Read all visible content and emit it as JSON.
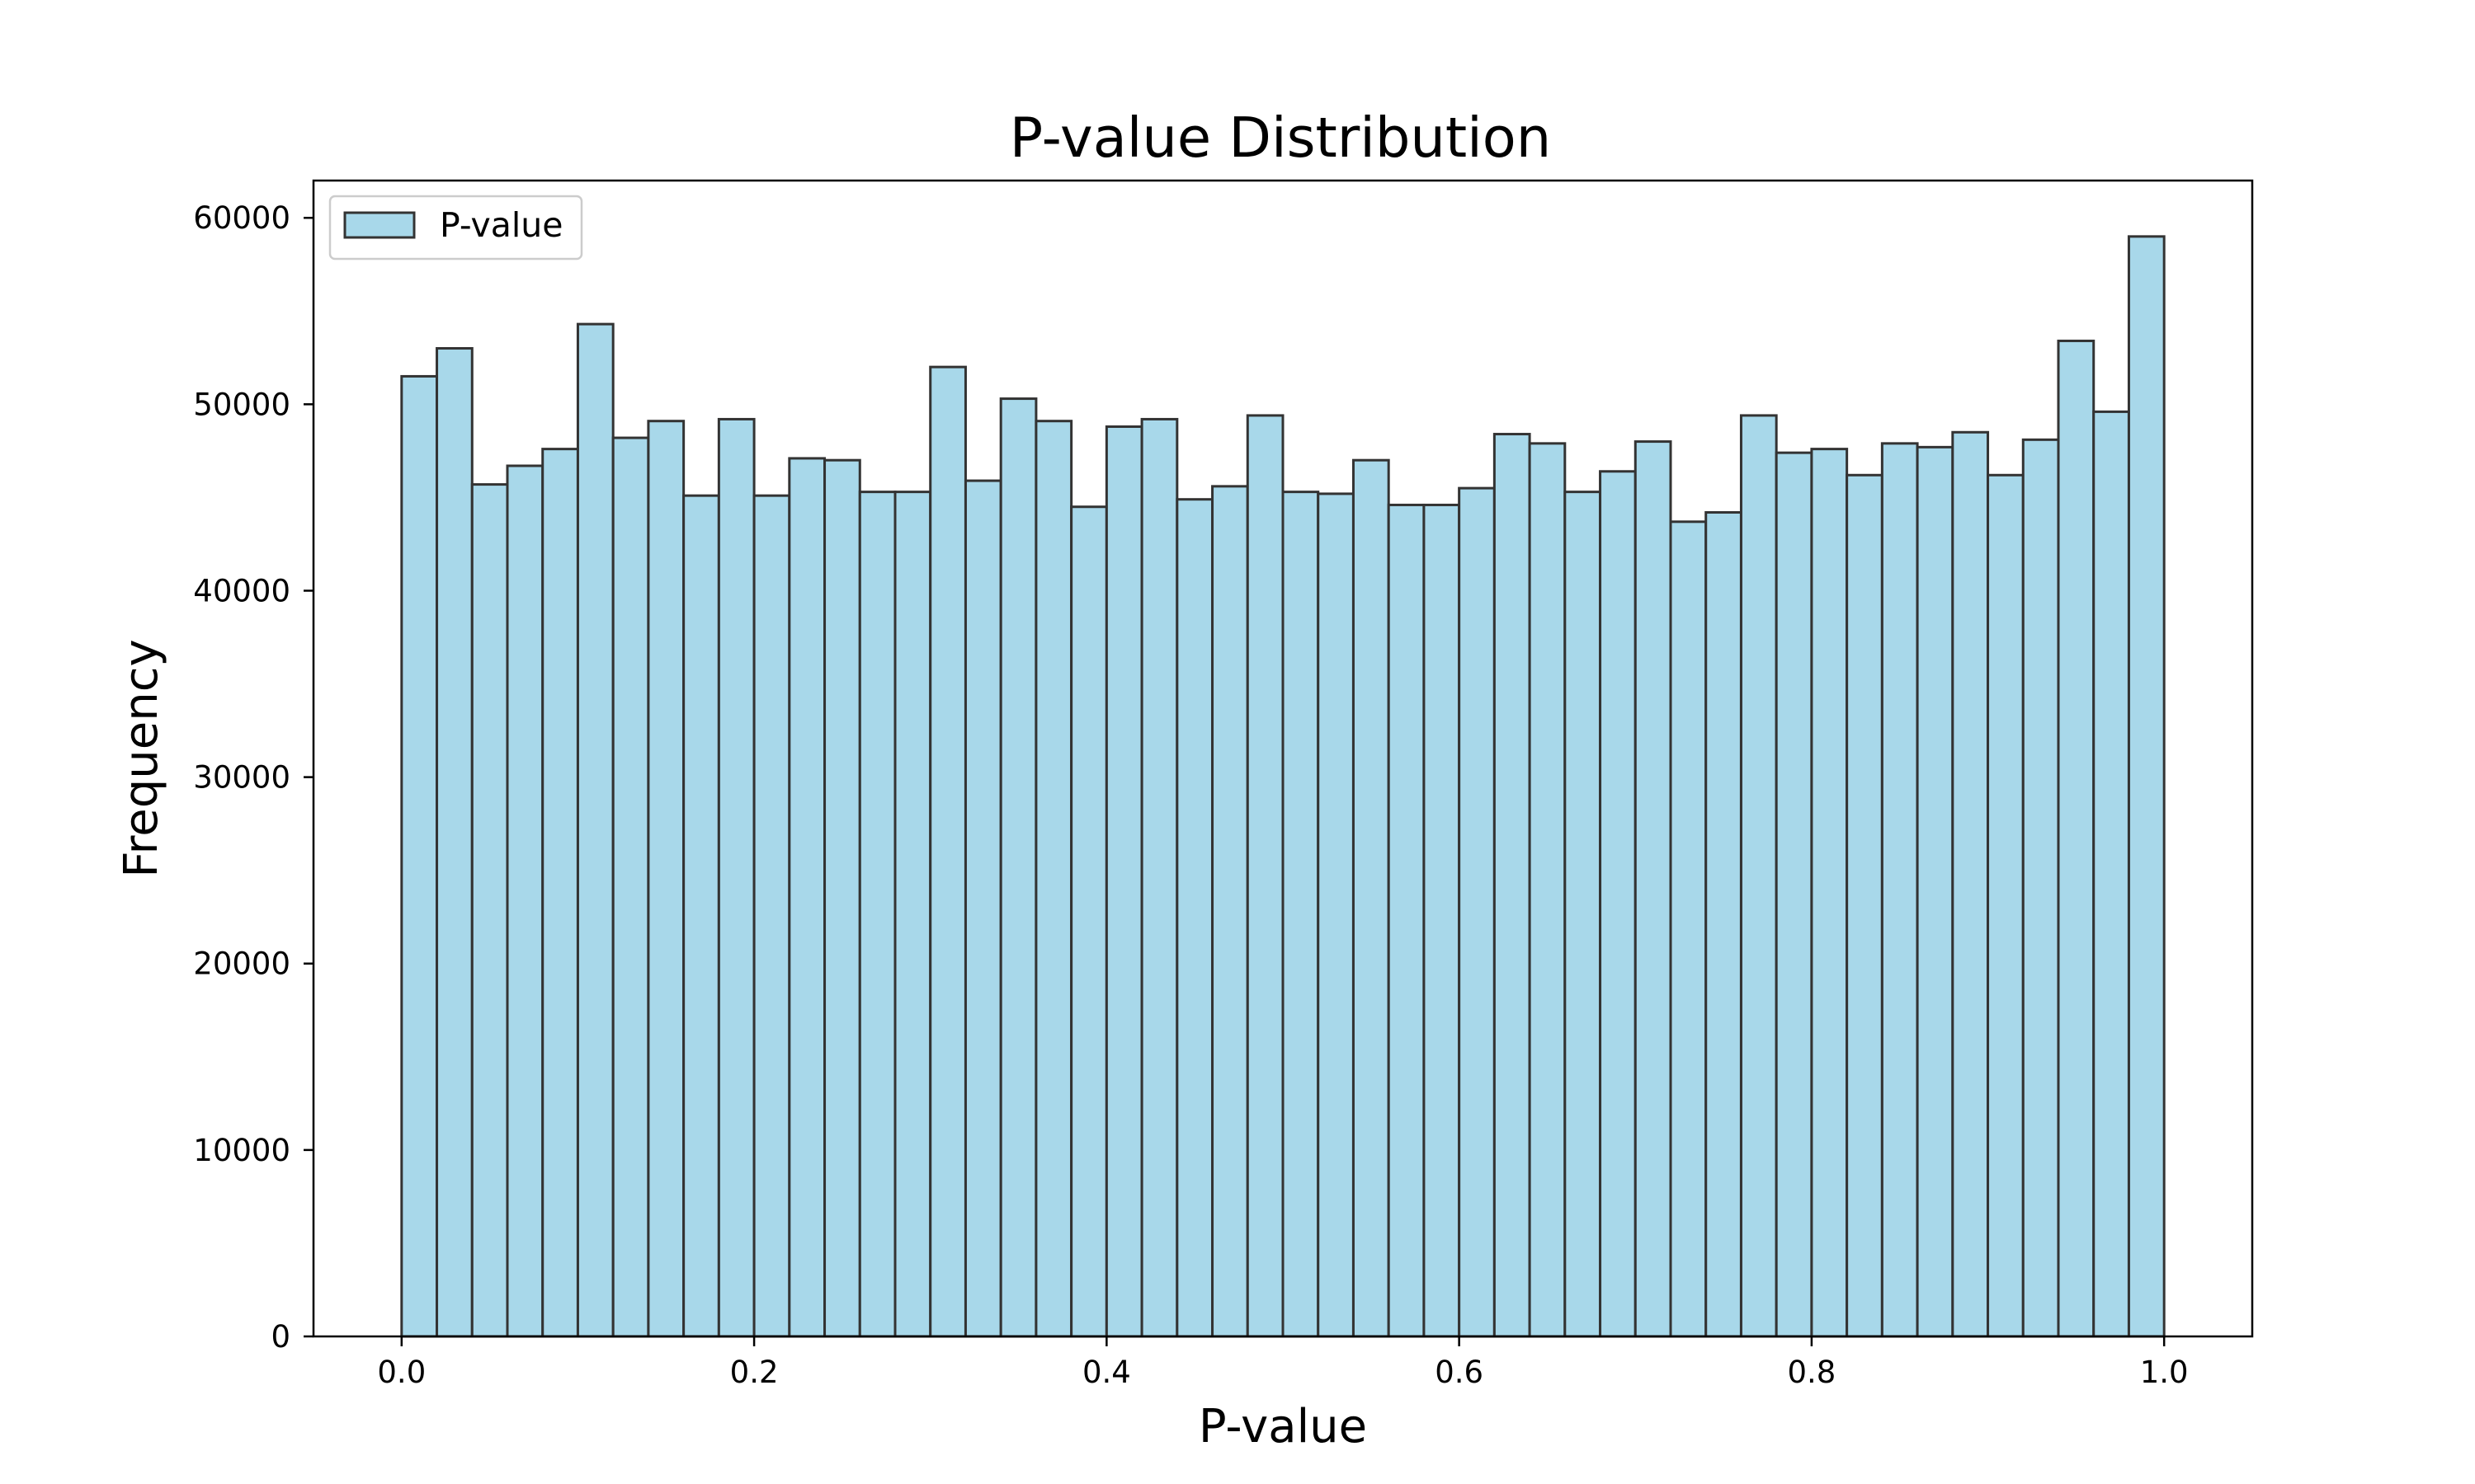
{
  "chart_data": {
    "type": "bar",
    "title": "P-value Distribution",
    "xlabel": "P-value",
    "ylabel": "Frequency",
    "xlim": [
      -0.05,
      1.05
    ],
    "ylim": [
      0,
      62000
    ],
    "bin_width": 0.02,
    "x_ticks": [
      0.0,
      0.2,
      0.4,
      0.6,
      0.8,
      1.0
    ],
    "x_tick_labels": [
      "0.0",
      "0.2",
      "0.4",
      "0.6",
      "0.8",
      "1.0"
    ],
    "y_ticks": [
      0,
      10000,
      20000,
      30000,
      40000,
      50000,
      60000
    ],
    "y_tick_labels": [
      "0",
      "10000",
      "20000",
      "30000",
      "40000",
      "50000",
      "60000"
    ],
    "grid": false,
    "legend_position": "upper left",
    "colors": {
      "fill": "#a8d8ea",
      "edge": "#333333"
    },
    "series": [
      {
        "name": "P-value",
        "bin_starts": [
          0.0,
          0.02,
          0.04,
          0.06,
          0.08,
          0.1,
          0.12,
          0.14,
          0.16,
          0.18,
          0.2,
          0.22,
          0.24,
          0.26,
          0.28,
          0.3,
          0.32,
          0.34,
          0.36,
          0.38,
          0.4,
          0.42,
          0.44,
          0.46,
          0.48,
          0.5,
          0.52,
          0.54,
          0.56,
          0.58,
          0.6,
          0.62,
          0.64,
          0.66,
          0.68,
          0.7,
          0.72,
          0.74,
          0.76,
          0.78,
          0.8,
          0.82,
          0.84,
          0.86,
          0.88,
          0.9,
          0.92,
          0.94,
          0.96,
          0.98
        ],
        "values": [
          51500,
          53000,
          45700,
          46700,
          47600,
          54300,
          48200,
          49100,
          45100,
          49200,
          45100,
          47100,
          47000,
          45300,
          45300,
          52000,
          45900,
          50300,
          49100,
          44500,
          48800,
          49200,
          44900,
          45600,
          49400,
          45300,
          45200,
          47000,
          44600,
          44600,
          45500,
          48400,
          47900,
          45300,
          46400,
          48000,
          43700,
          44200,
          49400,
          47400,
          47600,
          46200,
          47900,
          47700,
          48500,
          46200,
          48100,
          53400,
          49600,
          59000
        ]
      }
    ]
  }
}
